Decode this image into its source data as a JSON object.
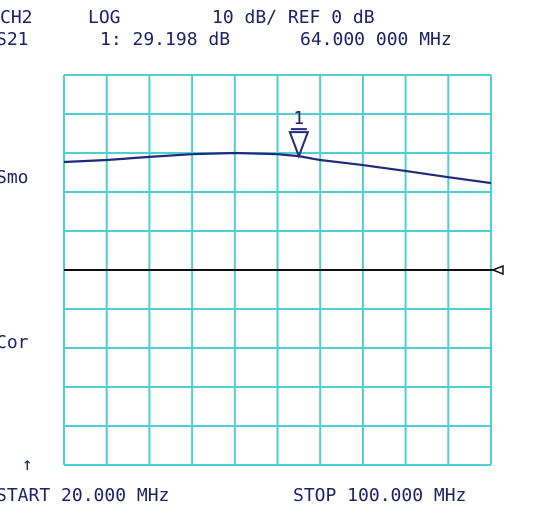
{
  "chart_data": {
    "type": "line",
    "header": {
      "channel": "CH2",
      "format": "LOG",
      "scale": "10 dB/ REF 0 dB",
      "parameter": "S21",
      "marker_readout": "1: 29.198 dB",
      "marker_frequency": "64.000 000 MHz"
    },
    "side_labels": {
      "smoothing": "Smo",
      "correction": "Cor",
      "arrow": "↑"
    },
    "footer": {
      "start": "START 20.000 MHz",
      "stop": "STOP 100.000 MHz"
    },
    "x": [
      20,
      28,
      36,
      44,
      52,
      60,
      64,
      68,
      76,
      84,
      92,
      100
    ],
    "series": [
      {
        "name": "S21",
        "color": "#1f2a7a",
        "values": [
          27.7,
          28.2,
          29.0,
          29.7,
          30.0,
          29.7,
          29.2,
          28.2,
          26.9,
          25.4,
          23.8,
          22.3
        ]
      }
    ],
    "marker": {
      "label": "1",
      "x": 64,
      "value": 29.198
    },
    "reference_line": 0,
    "xlim": [
      20,
      100
    ],
    "xticks": [
      20,
      28,
      36,
      44,
      52,
      60,
      68,
      76,
      84,
      92,
      100
    ],
    "ylim": [
      -50,
      50
    ],
    "yticks": [
      -50,
      -40,
      -30,
      -20,
      -10,
      0,
      10,
      20,
      30,
      40,
      50
    ],
    "grid": true,
    "grid_color": "#4fcfd2"
  }
}
